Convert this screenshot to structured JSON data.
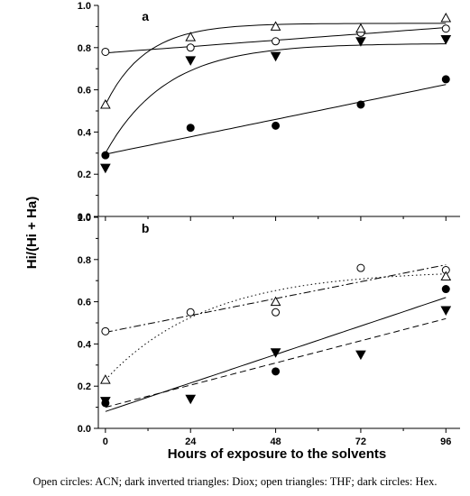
{
  "chart_data": [
    {
      "type": "scatter",
      "panel": "a",
      "ylabel": "Hi/(Hi + Ha)",
      "xlabel": "",
      "x_ticks": [
        0,
        24,
        48,
        72,
        96
      ],
      "y_ticks": [
        "0.0",
        "0.2",
        "0.4",
        "0.6",
        "0.8",
        "1.0"
      ],
      "xlim": [
        -2,
        100
      ],
      "ylim": [
        0,
        1.0
      ],
      "series": [
        {
          "marker": "open-circle",
          "x": [
            0,
            24,
            48,
            72,
            96
          ],
          "y": [
            0.78,
            0.8,
            0.83,
            0.87,
            0.89
          ],
          "fit": {
            "kind": "linear",
            "y0": 0.775,
            "y1": 0.895,
            "x0": 0,
            "x1": 96,
            "dash": "solid"
          }
        },
        {
          "marker": "open-triangle",
          "x": [
            0,
            24,
            48,
            72,
            96
          ],
          "y": [
            0.53,
            0.85,
            0.9,
            0.89,
            0.94
          ],
          "fit": {
            "kind": "exp",
            "a": 0.915,
            "b": 0.385,
            "k": 0.088,
            "x0": 0,
            "x1": 96,
            "dash": "solid"
          }
        },
        {
          "marker": "filled-inverted-triangle",
          "x": [
            0,
            24,
            48,
            72,
            96
          ],
          "y": [
            0.23,
            0.74,
            0.76,
            0.83,
            0.84
          ],
          "fit": {
            "kind": "exp",
            "a": 0.82,
            "b": 0.52,
            "k": 0.058,
            "x0": 0,
            "x1": 96,
            "dash": "solid"
          }
        },
        {
          "marker": "filled-circle",
          "x": [
            0,
            24,
            48,
            72,
            96
          ],
          "y": [
            0.29,
            0.42,
            0.43,
            0.53,
            0.65
          ],
          "fit": {
            "kind": "linear",
            "y0": 0.295,
            "y1": 0.625,
            "x0": 0,
            "x1": 96,
            "dash": "solid"
          }
        }
      ]
    },
    {
      "type": "scatter",
      "panel": "b",
      "ylabel": "Hi/(Hi + Ha)",
      "xlabel": "Hours of exposure to the solvents",
      "x_ticks": [
        0,
        24,
        48,
        72,
        96
      ],
      "y_ticks": [
        "0.0",
        "0.2",
        "0.4",
        "0.6",
        "0.8",
        "1.0"
      ],
      "xlim": [
        -2,
        100
      ],
      "ylim": [
        0,
        1.0
      ],
      "series": [
        {
          "marker": "open-circle",
          "x": [
            0,
            24,
            48,
            72,
            96
          ],
          "y": [
            0.46,
            0.55,
            0.55,
            0.76,
            0.75
          ],
          "fit": {
            "kind": "linear",
            "y0": 0.455,
            "y1": 0.775,
            "x0": 0,
            "x1": 96,
            "dash": "dashdot"
          }
        },
        {
          "marker": "open-triangle",
          "x": [
            0,
            48,
            96
          ],
          "y": [
            0.23,
            0.6,
            0.72
          ],
          "fit": {
            "kind": "exp",
            "a": 0.75,
            "b": 0.52,
            "k": 0.035,
            "x0": 0,
            "x1": 96,
            "dash": "dotted"
          }
        },
        {
          "marker": "filled-inverted-triangle",
          "x": [
            0,
            24,
            48,
            72,
            96
          ],
          "y": [
            0.13,
            0.14,
            0.36,
            0.35,
            0.56
          ],
          "fit": {
            "kind": "linear",
            "y0": 0.1,
            "y1": 0.52,
            "x0": 0,
            "x1": 96,
            "dash": "dashed"
          }
        },
        {
          "marker": "filled-circle",
          "x": [
            0,
            48,
            96
          ],
          "y": [
            0.12,
            0.27,
            0.66
          ],
          "fit": {
            "kind": "linear",
            "y0": 0.08,
            "y1": 0.62,
            "x0": 0,
            "x1": 96,
            "dash": "solid"
          }
        }
      ]
    }
  ],
  "caption": "Open circles: ACN; dark inverted triangles: Diox; open triangles: THF; dark circles: Hex."
}
